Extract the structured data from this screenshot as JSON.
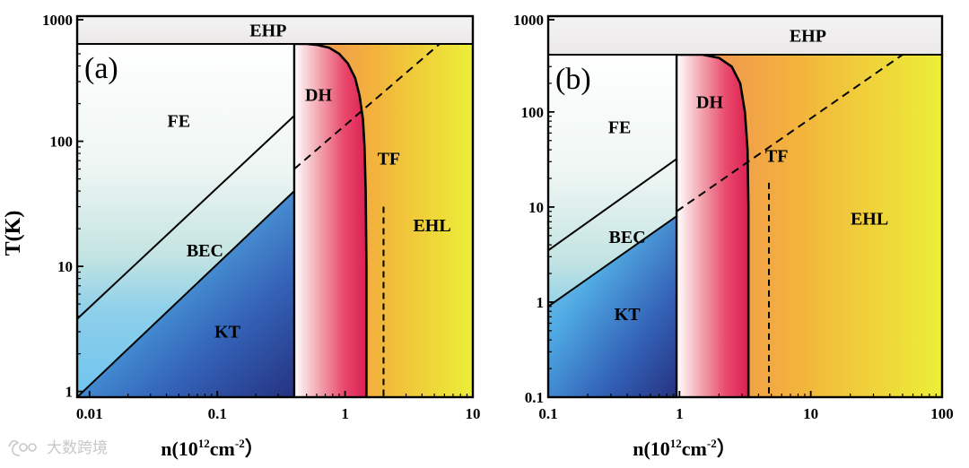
{
  "figure": {
    "ylabel": "T(K)",
    "xlabel_parts": [
      "n(10",
      "12",
      "cm",
      "-2",
      "）"
    ],
    "watermark_text": "大数跨境"
  },
  "chart_data": [
    {
      "panel": "(a)",
      "type": "area",
      "xscale": "log",
      "yscale": "log",
      "xlim": [
        0.008,
        10
      ],
      "ylim": [
        0.9,
        1000
      ],
      "ehp_floor_T": 600,
      "xticks": [
        0.01,
        0.1,
        1,
        10
      ],
      "xtick_labels": [
        "0.01",
        "0.1",
        "1",
        "10"
      ],
      "yticks": [
        1,
        10,
        100,
        1000
      ],
      "ytick_labels": [
        "1",
        "10",
        "100",
        "1000"
      ],
      "boundary_density": 0.4,
      "bec_fe_line": [
        [
          0.008,
          3.8
        ],
        [
          0.4,
          160
        ]
      ],
      "kt_bec_line": [
        [
          0.008,
          0.9
        ],
        [
          0.4,
          40
        ]
      ],
      "dashed_diagonal": [
        [
          0.4,
          60
        ],
        [
          5.5,
          600
        ]
      ],
      "dh_curve": [
        [
          0.4,
          600
        ],
        [
          0.5,
          600
        ],
        [
          0.6,
          590
        ],
        [
          0.75,
          560
        ],
        [
          0.9,
          500
        ],
        [
          1.05,
          420
        ],
        [
          1.2,
          320
        ],
        [
          1.3,
          230
        ],
        [
          1.38,
          150
        ],
        [
          1.42,
          90
        ],
        [
          1.45,
          40
        ],
        [
          1.47,
          10
        ],
        [
          1.47,
          0.9
        ]
      ],
      "tf_dashed_x": 2.0,
      "tf_dashed_top_T": 30,
      "labels": [
        {
          "text": "EHP",
          "x": 0.25,
          "T": 800
        },
        {
          "text": "FE",
          "x": 0.05,
          "T": 130
        },
        {
          "text": "BEC",
          "x": 0.08,
          "T": 12
        },
        {
          "text": "KT",
          "x": 0.12,
          "T": 2.7
        },
        {
          "text": "DH",
          "x": 0.62,
          "T": 210
        },
        {
          "text": "TF",
          "x": 2.2,
          "T": 65
        },
        {
          "text": "EHL",
          "x": 4.8,
          "T": 19
        }
      ]
    },
    {
      "panel": "(b)",
      "type": "area",
      "xscale": "log",
      "yscale": "log",
      "xlim": [
        0.1,
        100
      ],
      "ylim": [
        0.1,
        1000
      ],
      "ehp_floor_T": 400,
      "xticks": [
        0.1,
        1,
        10,
        100
      ],
      "xtick_labels": [
        "0.1",
        "1",
        "10",
        "100"
      ],
      "yticks": [
        0.1,
        1,
        10,
        100,
        1000
      ],
      "ytick_labels": [
        "0.1",
        "1",
        "10",
        "100",
        "1000"
      ],
      "boundary_density": 0.95,
      "bec_fe_line": [
        [
          0.1,
          3.5
        ],
        [
          0.95,
          32
        ]
      ],
      "kt_bec_line": [
        [
          0.1,
          0.9
        ],
        [
          0.95,
          8
        ]
      ],
      "dashed_diagonal": [
        [
          0.95,
          9
        ],
        [
          50,
          400
        ]
      ],
      "dh_curve": [
        [
          0.95,
          400
        ],
        [
          1.5,
          400
        ],
        [
          2.0,
          370
        ],
        [
          2.5,
          300
        ],
        [
          2.9,
          200
        ],
        [
          3.15,
          100
        ],
        [
          3.3,
          40
        ],
        [
          3.35,
          10
        ],
        [
          3.35,
          0.1
        ]
      ],
      "tf_dashed_x": 4.8,
      "tf_dashed_top_T": 18,
      "labels": [
        {
          "text": "EHP",
          "x": 9.5,
          "T": 650
        },
        {
          "text": "FE",
          "x": 0.35,
          "T": 60
        },
        {
          "text": "BEC",
          "x": 0.4,
          "T": 4.2
        },
        {
          "text": "KT",
          "x": 0.4,
          "T": 0.65
        },
        {
          "text": "DH",
          "x": 1.7,
          "T": 110
        },
        {
          "text": "TF",
          "x": 5.5,
          "T": 30
        },
        {
          "text": "EHL",
          "x": 28,
          "T": 6.5
        }
      ]
    }
  ]
}
